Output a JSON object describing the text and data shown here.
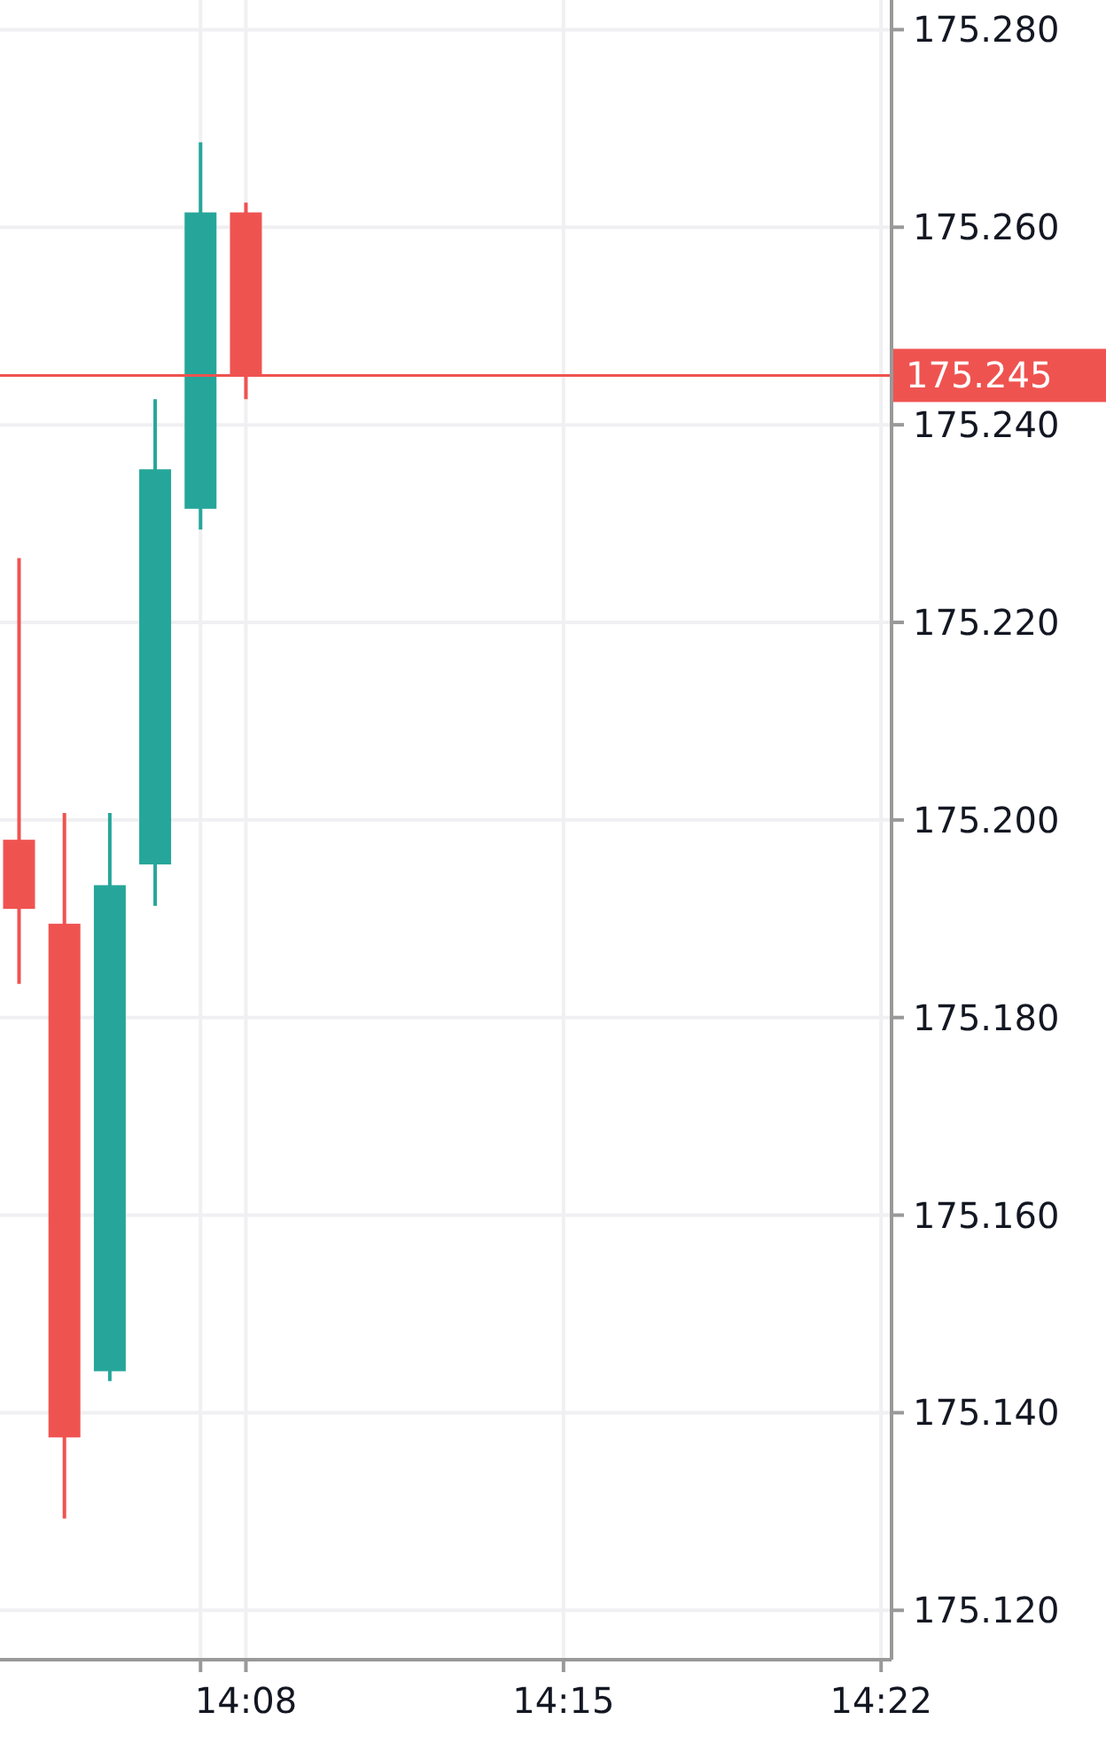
{
  "chart_data": {
    "type": "candlestick",
    "x": [
      14.05,
      14.066667,
      14.083333,
      14.1,
      14.116667,
      14.133333
    ],
    "ohlc": [
      [
        175.198,
        175.2265,
        175.1834,
        175.191
      ],
      [
        175.1895,
        175.2007,
        175.1293,
        175.1375
      ],
      [
        175.1442,
        175.2007,
        175.1432,
        175.1934
      ],
      [
        175.1955,
        175.2426,
        175.1913,
        175.2355
      ],
      [
        175.2315,
        175.2686,
        175.2294,
        175.2615
      ],
      [
        175.2615,
        175.2625,
        175.2426,
        175.245
      ]
    ],
    "colors": [
      "#ef5350",
      "#ef5350",
      "#26a69a",
      "#26a69a",
      "#26a69a",
      "#ef5350"
    ],
    "xlim": [
      14.043,
      14.3705
    ],
    "xticks": [
      {
        "value": 14.116667,
        "label": null
      },
      {
        "value": 14.133333,
        "label": "14:08"
      },
      {
        "value": 14.25,
        "label": "14:15"
      },
      {
        "value": 14.366667,
        "label": "14:22"
      }
    ],
    "ylim": [
      175.115,
      175.283
    ],
    "yticks": [
      {
        "value": 175.12,
        "label": "175.120"
      },
      {
        "value": 175.14,
        "label": "175.140"
      },
      {
        "value": 175.16,
        "label": "175.160"
      },
      {
        "value": 175.18,
        "label": "175.180"
      },
      {
        "value": 175.2,
        "label": "175.200"
      },
      {
        "value": 175.22,
        "label": "175.220"
      },
      {
        "value": 175.24,
        "label": "175.240"
      },
      {
        "value": 175.26,
        "label": "175.260"
      },
      {
        "value": 175.28,
        "label": "175.280"
      }
    ],
    "ref_lines": [
      {
        "axis": "y",
        "value": 175.245,
        "label": "175.245",
        "color": "#ef5350"
      }
    ],
    "grid": true
  }
}
